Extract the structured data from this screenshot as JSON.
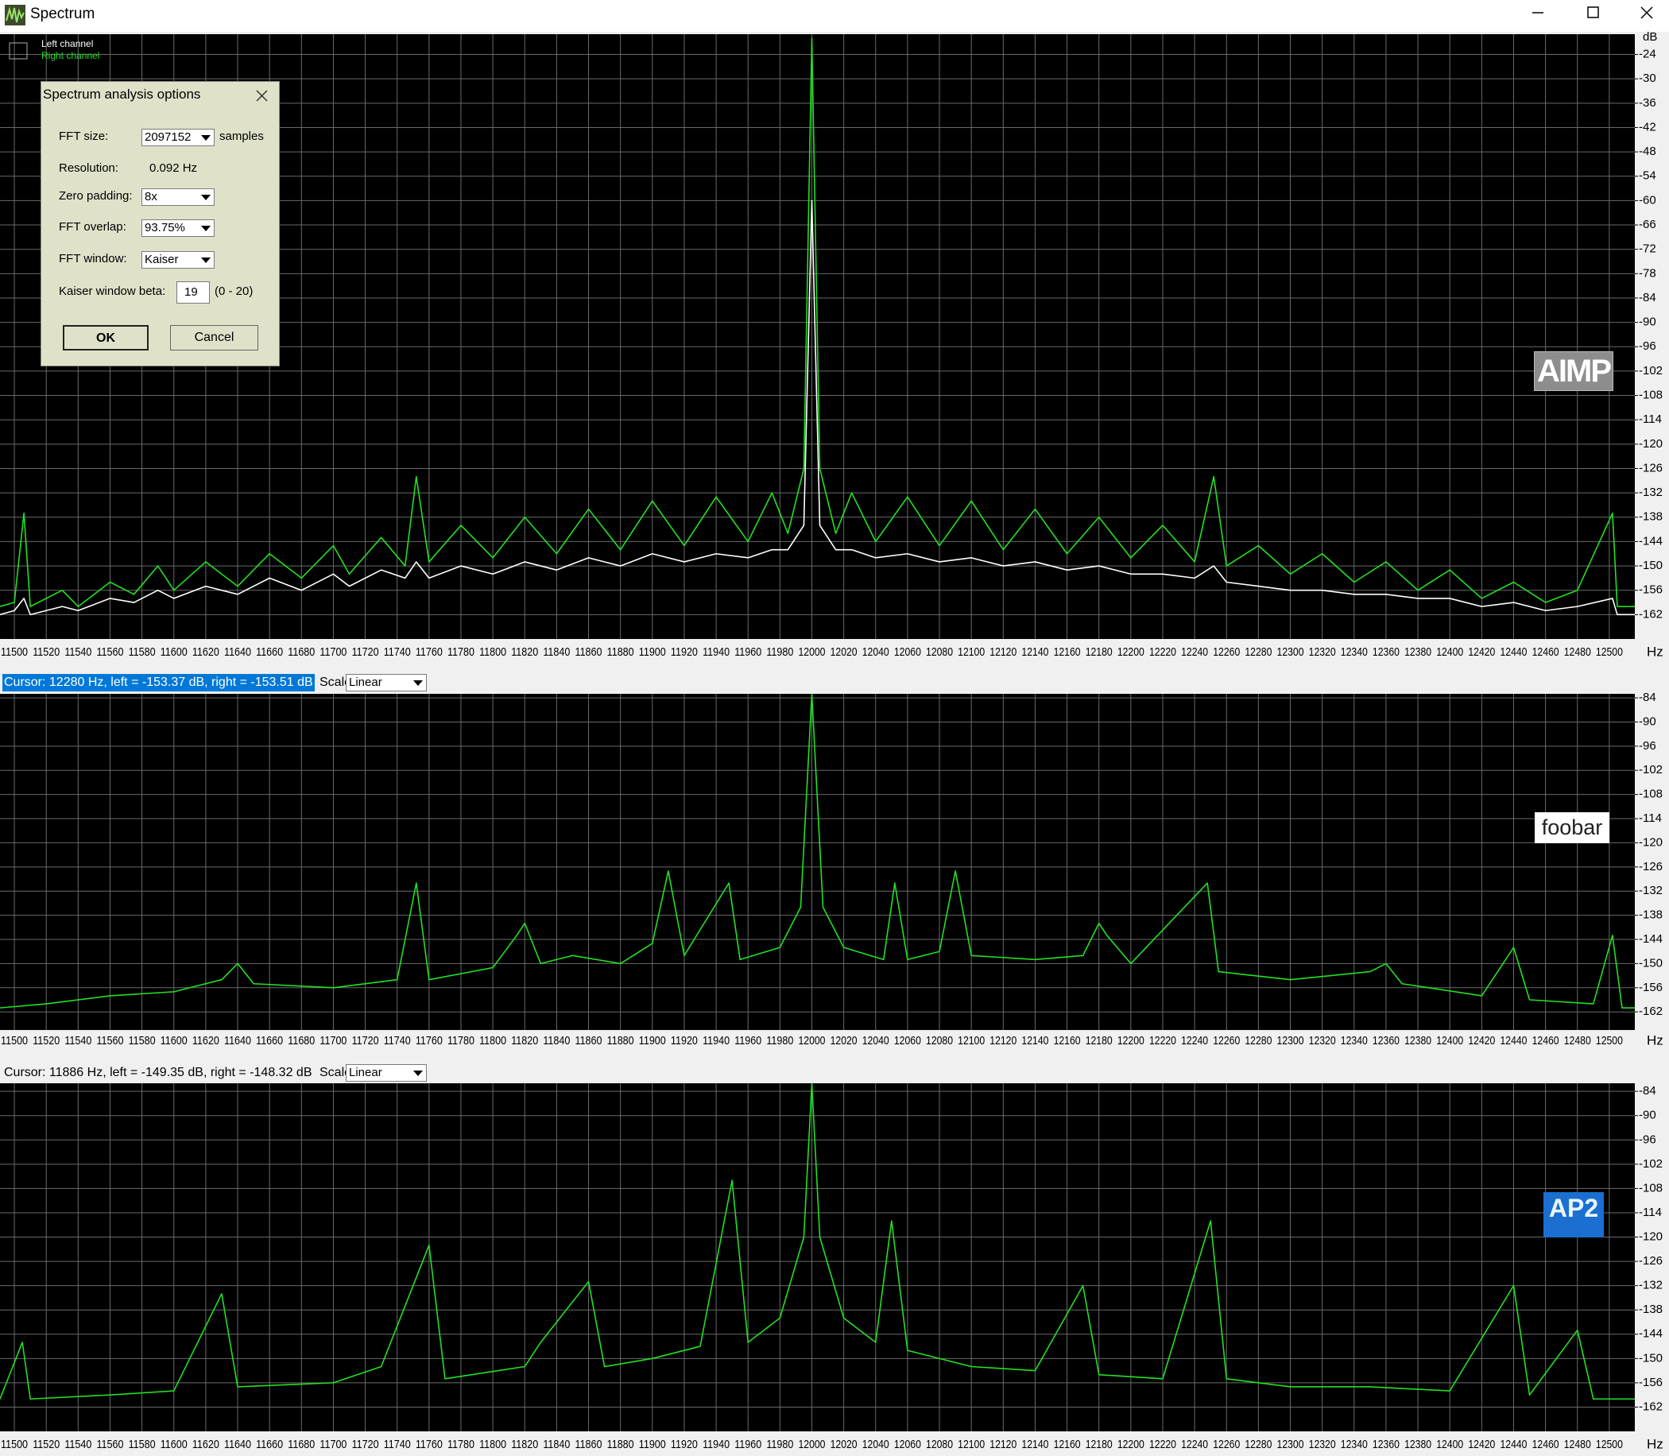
{
  "window": {
    "title": "Spectrum"
  },
  "dialog": {
    "title": "Spectrum analysis options",
    "fft_size_label": "FFT size:",
    "fft_size": "2097152",
    "fft_size_unit": "samples",
    "resolution_label": "Resolution:",
    "resolution": "0.092 Hz",
    "zero_padding_label": "Zero padding:",
    "zero_padding": "8x",
    "fft_overlap_label": "FFT overlap:",
    "fft_overlap": "93.75%",
    "fft_window_label": "FFT window:",
    "fft_window": "Kaiser",
    "kaiser_beta_label": "Kaiser window beta:",
    "kaiser_beta": "19",
    "kaiser_beta_range": "(0 - 20)",
    "ok": "OK",
    "cancel": "Cancel"
  },
  "status_bars": [
    {
      "cursor": "Cursor:  12280 Hz,  left = -153.37 dB,  right = -153.51 dB",
      "scale_label": "Scale",
      "scale_value": "Linear"
    },
    {
      "cursor": "Cursor:  11886 Hz,  left = -149.35 dB,  right = -148.32 dB",
      "scale_label": "Scale",
      "scale_value": "Linear"
    }
  ],
  "chart_data": [
    {
      "type": "line",
      "watermark": "AIMP",
      "x_unit": "Hz",
      "y_unit": "dB",
      "grid": true,
      "xlim": [
        11491,
        12516
      ],
      "ylim": [
        -168,
        -19
      ],
      "xticks": [
        11500,
        11520,
        11540,
        11560,
        11580,
        11600,
        11620,
        11640,
        11660,
        11680,
        11700,
        11720,
        11740,
        11760,
        11780,
        11800,
        11820,
        11840,
        11860,
        11880,
        11900,
        11920,
        11940,
        11960,
        11980,
        12000,
        12020,
        12040,
        12060,
        12080,
        12100,
        12120,
        12140,
        12160,
        12180,
        12200,
        12220,
        12240,
        12260,
        12280,
        12300,
        12320,
        12340,
        12360,
        12380,
        12400,
        12420,
        12440,
        12460,
        12480,
        12500
      ],
      "yticks": [
        -24,
        -30,
        -36,
        -42,
        -48,
        -54,
        -60,
        -66,
        -72,
        -78,
        -84,
        -90,
        -96,
        -102,
        -108,
        -114,
        -120,
        -126,
        -132,
        -138,
        -144,
        -150,
        -156,
        -162
      ],
      "x": [
        11491,
        11500,
        11506,
        11510,
        11530,
        11540,
        11560,
        11575,
        11590,
        11600,
        11620,
        11640,
        11660,
        11680,
        11700,
        11710,
        11730,
        11745,
        11752,
        11760,
        11780,
        11800,
        11820,
        11840,
        11860,
        11880,
        11900,
        11920,
        11940,
        11960,
        11975,
        11985,
        11995,
        12000,
        12005,
        12015,
        12025,
        12040,
        12060,
        12080,
        12100,
        12120,
        12140,
        12160,
        12180,
        12200,
        12220,
        12240,
        12252,
        12260,
        12280,
        12300,
        12320,
        12340,
        12360,
        12380,
        12400,
        12420,
        12440,
        12460,
        12480,
        12502,
        12505,
        12516
      ],
      "series": [
        {
          "name": "Left channel",
          "color": "#ffffff",
          "values": [
            -162,
            -161,
            -158,
            -162,
            -160,
            -161,
            -158,
            -159,
            -156,
            -158,
            -155,
            -157,
            -153,
            -156,
            -152,
            -155,
            -151,
            -153,
            -149,
            -153,
            -150,
            -152,
            -149,
            -151,
            -148,
            -150,
            -147,
            -149,
            -147,
            -148,
            -146,
            -146,
            -140,
            -60,
            -140,
            -146,
            -146,
            -148,
            -147,
            -149,
            -148,
            -150,
            -149,
            -151,
            -150,
            -152,
            -152,
            -153,
            -150,
            -154,
            -155,
            -156,
            -156,
            -157,
            -157,
            -158,
            -158,
            -160,
            -159,
            -161,
            -160,
            -158,
            -162,
            -162
          ]
        },
        {
          "name": "Right channel",
          "color": "#22e022",
          "values": [
            -160,
            -159,
            -137,
            -160,
            -156,
            -160,
            -154,
            -157,
            -150,
            -156,
            -149,
            -155,
            -147,
            -153,
            -145,
            -152,
            -143,
            -150,
            -128,
            -149,
            -140,
            -148,
            -138,
            -147,
            -136,
            -146,
            -134,
            -145,
            -133,
            -144,
            -132,
            -142,
            -126,
            -20,
            -126,
            -142,
            -132,
            -144,
            -133,
            -145,
            -134,
            -146,
            -136,
            -147,
            -138,
            -148,
            -140,
            -149,
            -128,
            -150,
            -145,
            -152,
            -147,
            -154,
            -149,
            -156,
            -151,
            -158,
            -154,
            -159,
            -156,
            -137,
            -160,
            -160
          ]
        }
      ]
    },
    {
      "type": "line",
      "watermark": "foobar",
      "x_unit": "Hz",
      "grid": true,
      "xlim": [
        11491,
        12516
      ],
      "ylim": [
        -166.5,
        -83
      ],
      "xticks": [
        11500,
        11520,
        11540,
        11560,
        11580,
        11600,
        11620,
        11640,
        11660,
        11680,
        11700,
        11720,
        11740,
        11760,
        11780,
        11800,
        11820,
        11840,
        11860,
        11880,
        11900,
        11920,
        11940,
        11960,
        11980,
        12000,
        12020,
        12040,
        12060,
        12080,
        12100,
        12120,
        12140,
        12160,
        12180,
        12200,
        12220,
        12240,
        12260,
        12280,
        12300,
        12320,
        12340,
        12360,
        12380,
        12400,
        12420,
        12440,
        12460,
        12480,
        12500
      ],
      "yticks": [
        -84,
        -90,
        -96,
        -102,
        -108,
        -114,
        -120,
        -126,
        -132,
        -138,
        -144,
        -150,
        -156,
        -162
      ],
      "x": [
        11491,
        11520,
        11560,
        11600,
        11630,
        11640,
        11650,
        11700,
        11740,
        11752,
        11760,
        11800,
        11815,
        11820,
        11830,
        11850,
        11880,
        11900,
        11910,
        11920,
        11948,
        11955,
        11980,
        11993,
        12000,
        12007,
        12020,
        12045,
        12052,
        12060,
        12080,
        12090,
        12100,
        12140,
        12170,
        12180,
        12185,
        12200,
        12248,
        12255,
        12300,
        12350,
        12360,
        12370,
        12420,
        12440,
        12450,
        12490,
        12502,
        12508,
        12516
      ],
      "series": [
        {
          "color": "#22e022",
          "values": [
            -161,
            -160,
            -158,
            -157,
            -154,
            -150,
            -155,
            -156,
            -154,
            -130,
            -154,
            -151,
            -143,
            -140,
            -150,
            -148,
            -150,
            -145,
            -127,
            -148,
            -130,
            -149,
            -146,
            -136,
            -83,
            -136,
            -146,
            -149,
            -130,
            -149,
            -147,
            -127,
            -148,
            -149,
            -148,
            -140,
            -143,
            -150,
            -130,
            -152,
            -154,
            -152,
            -150,
            -155,
            -158,
            -146,
            -159,
            -160,
            -143,
            -161,
            -161
          ]
        }
      ]
    },
    {
      "type": "line",
      "watermark": "AP2",
      "x_unit": "Hz",
      "grid": true,
      "xlim": [
        11491,
        12516
      ],
      "ylim": [
        -168,
        -82
      ],
      "xticks": [
        11500,
        11520,
        11540,
        11560,
        11580,
        11600,
        11620,
        11640,
        11660,
        11680,
        11700,
        11720,
        11740,
        11760,
        11780,
        11800,
        11820,
        11840,
        11860,
        11880,
        11900,
        11920,
        11940,
        11960,
        11980,
        12000,
        12020,
        12040,
        12060,
        12080,
        12100,
        12120,
        12140,
        12160,
        12180,
        12200,
        12220,
        12240,
        12260,
        12280,
        12300,
        12320,
        12340,
        12360,
        12380,
        12400,
        12420,
        12440,
        12460,
        12480,
        12500
      ],
      "yticks": [
        -84,
        -90,
        -96,
        -102,
        -108,
        -114,
        -120,
        -126,
        -132,
        -138,
        -144,
        -150,
        -156,
        -162
      ],
      "x": [
        11491,
        11505,
        11510,
        11560,
        11600,
        11630,
        11640,
        11700,
        11730,
        11760,
        11770,
        11820,
        11830,
        11860,
        11870,
        11900,
        11930,
        11950,
        11960,
        11980,
        11995,
        12000,
        12005,
        12020,
        12040,
        12050,
        12060,
        12100,
        12140,
        12170,
        12180,
        12220,
        12250,
        12260,
        12300,
        12350,
        12400,
        12440,
        12450,
        12480,
        12490,
        12516
      ],
      "series": [
        {
          "color": "#22e022",
          "values": [
            -160,
            -146,
            -160,
            -159,
            -158,
            -134,
            -157,
            -156,
            -152,
            -122,
            -155,
            -152,
            -146,
            -131,
            -152,
            -150,
            -147,
            -106,
            -146,
            -140,
            -120,
            -82,
            -120,
            -140,
            -146,
            -116,
            -148,
            -152,
            -153,
            -132,
            -154,
            -155,
            -116,
            -155,
            -157,
            -157,
            -158,
            -132,
            -159,
            -143,
            -160,
            -160
          ]
        }
      ]
    }
  ]
}
